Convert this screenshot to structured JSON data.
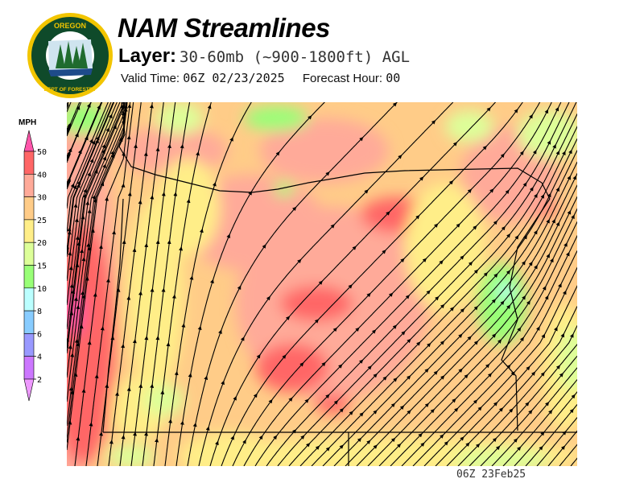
{
  "header": {
    "title": "NAM Streamlines",
    "layer_label": "Layer:",
    "layer_value": "30-60mb (~900-1800ft) AGL",
    "valid_label": "Valid Time:",
    "valid_value": "06Z 02/23/2025",
    "forecast_label": "Forecast Hour:",
    "forecast_value": "00"
  },
  "logo": {
    "text_top": "OREGON",
    "text_bottom": "DEPARTMENT OF FORESTRY"
  },
  "legend": {
    "unit": "MPH",
    "ticks": [
      "50",
      "40",
      "30",
      "25",
      "20",
      "15",
      "10",
      "8",
      "6",
      "4",
      "2"
    ],
    "colors": {
      "above": "#ff55aa",
      "bands": [
        "#ff6666",
        "#ffaa99",
        "#ffcc88",
        "#ffee88",
        "#ddff99",
        "#99ff77",
        "#bbffff",
        "#88ccff",
        "#9999ff",
        "#cc77ff"
      ],
      "below": "#ee99ff"
    }
  },
  "footer": {
    "timestamp": "06Z 23Feb25"
  }
}
